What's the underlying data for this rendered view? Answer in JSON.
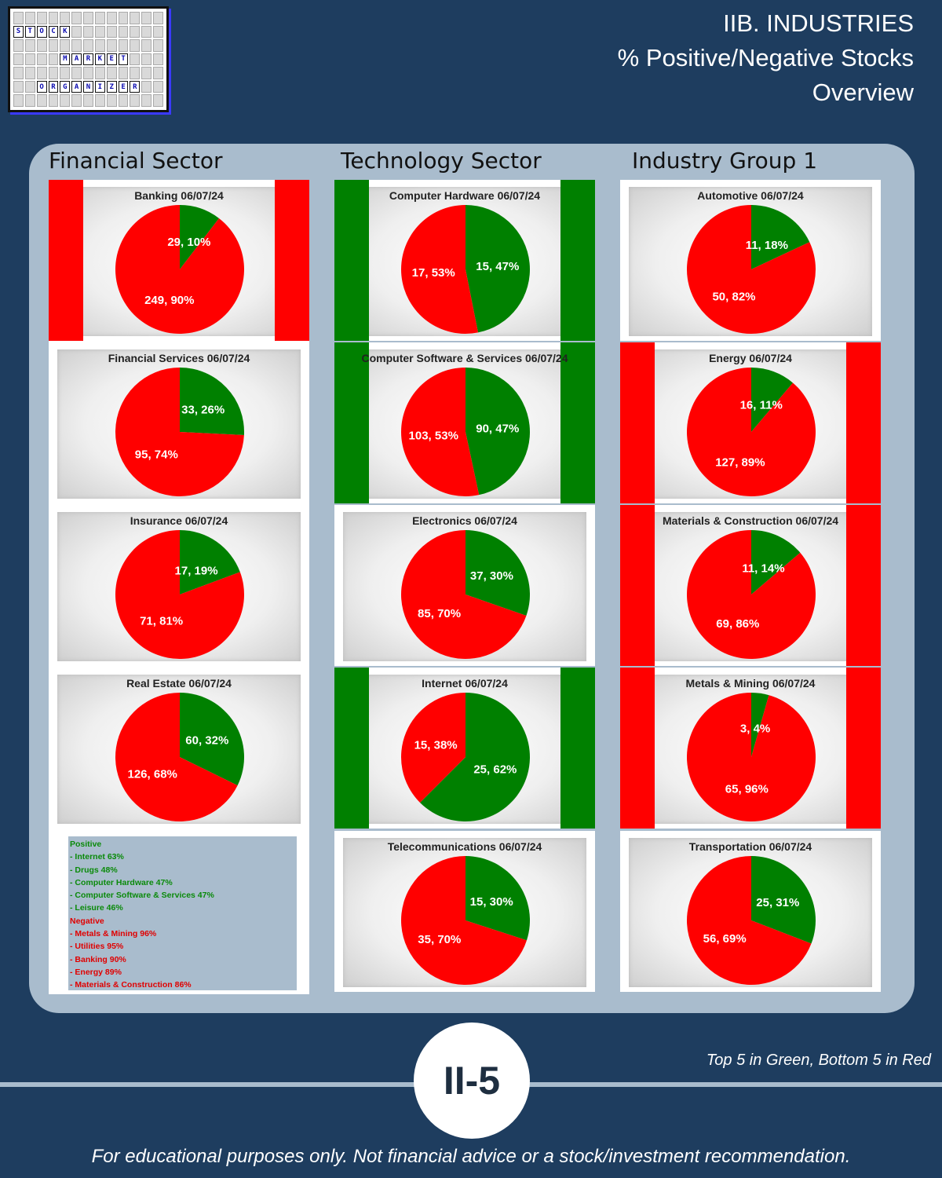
{
  "logo": {
    "rows": [
      [
        "",
        "",
        "",
        "",
        "",
        "",
        "",
        "",
        "",
        "",
        "",
        "",
        ""
      ],
      [
        "S",
        "T",
        "O",
        "C",
        "K",
        "",
        "",
        "",
        "",
        "",
        "",
        "",
        ""
      ],
      [
        "",
        "",
        "",
        "",
        "",
        "",
        "",
        "",
        "",
        "",
        "",
        "",
        ""
      ],
      [
        "",
        "",
        "",
        "",
        "M",
        "A",
        "R",
        "K",
        "E",
        "T",
        "",
        "",
        ""
      ],
      [
        "",
        "",
        "",
        "",
        "",
        "",
        "",
        "",
        "",
        "",
        "",
        "",
        ""
      ],
      [
        "",
        "",
        "O",
        "R",
        "G",
        "A",
        "N",
        "I",
        "Z",
        "E",
        "R",
        "",
        ""
      ],
      [
        "",
        "",
        "",
        "",
        "",
        "",
        "",
        "",
        "",
        "",
        "",
        "",
        ""
      ]
    ]
  },
  "header": {
    "line1": "IIB. INDUSTRIES",
    "line2": "% Positive/Negative Stocks",
    "line3": "Overview"
  },
  "sectors": [
    "Financial Sector",
    "Technology Sector",
    "Industry Group 1"
  ],
  "colors": {
    "positive": "#008000",
    "negative": "#ff0000",
    "background": "#1e3d5f",
    "panel": "#a9bccd"
  },
  "chart_data": [
    {
      "type": "pie",
      "title": "Banking 06/07/24",
      "column": 0,
      "row": 0,
      "highlight": "bottom",
      "labels": [
        "29, 10%",
        "249, 90%"
      ],
      "series": [
        {
          "values": [
            29,
            249
          ],
          "colors": [
            "#008000",
            "#ff0000"
          ]
        }
      ]
    },
    {
      "type": "pie",
      "title": "Financial Services 06/07/24",
      "column": 0,
      "row": 1,
      "highlight": "none",
      "labels": [
        "33, 26%",
        "95, 74%"
      ],
      "series": [
        {
          "values": [
            33,
            95
          ],
          "colors": [
            "#008000",
            "#ff0000"
          ]
        }
      ]
    },
    {
      "type": "pie",
      "title": "Insurance 06/07/24",
      "column": 0,
      "row": 2,
      "highlight": "none",
      "labels": [
        "17, 19%",
        "71, 81%"
      ],
      "series": [
        {
          "values": [
            17,
            71
          ],
          "colors": [
            "#008000",
            "#ff0000"
          ]
        }
      ]
    },
    {
      "type": "pie",
      "title": "Real Estate 06/07/24",
      "column": 0,
      "row": 3,
      "highlight": "none",
      "labels": [
        "60, 32%",
        "126, 68%"
      ],
      "series": [
        {
          "values": [
            60,
            126
          ],
          "colors": [
            "#008000",
            "#ff0000"
          ]
        }
      ]
    },
    {
      "type": "pie",
      "title": "Computer Hardware 06/07/24",
      "column": 1,
      "row": 0,
      "highlight": "top",
      "labels": [
        "15, 47%",
        "17, 53%"
      ],
      "series": [
        {
          "values": [
            15,
            17
          ],
          "colors": [
            "#008000",
            "#ff0000"
          ]
        }
      ]
    },
    {
      "type": "pie",
      "title": "Computer Software & Services 06/07/24",
      "column": 1,
      "row": 1,
      "highlight": "top",
      "labels": [
        "90, 47%",
        "103, 53%"
      ],
      "series": [
        {
          "values": [
            90,
            103
          ],
          "colors": [
            "#008000",
            "#ff0000"
          ]
        }
      ]
    },
    {
      "type": "pie",
      "title": "Electronics 06/07/24",
      "column": 1,
      "row": 2,
      "highlight": "none",
      "labels": [
        "37, 30%",
        "85, 70%"
      ],
      "series": [
        {
          "values": [
            37,
            85
          ],
          "colors": [
            "#008000",
            "#ff0000"
          ]
        }
      ]
    },
    {
      "type": "pie",
      "title": "Internet 06/07/24",
      "column": 1,
      "row": 3,
      "highlight": "top",
      "labels": [
        "25, 62%",
        "15, 38%"
      ],
      "series": [
        {
          "values": [
            25,
            15
          ],
          "colors": [
            "#008000",
            "#ff0000"
          ]
        }
      ]
    },
    {
      "type": "pie",
      "title": "Telecommunications 06/07/24",
      "column": 1,
      "row": 4,
      "highlight": "none",
      "labels": [
        "15, 30%",
        "35, 70%"
      ],
      "series": [
        {
          "values": [
            15,
            35
          ],
          "colors": [
            "#008000",
            "#ff0000"
          ]
        }
      ]
    },
    {
      "type": "pie",
      "title": "Automotive 06/07/24",
      "column": 2,
      "row": 0,
      "highlight": "none",
      "labels": [
        "11, 18%",
        "50, 82%"
      ],
      "series": [
        {
          "values": [
            11,
            50
          ],
          "colors": [
            "#008000",
            "#ff0000"
          ]
        }
      ]
    },
    {
      "type": "pie",
      "title": "Energy 06/07/24",
      "column": 2,
      "row": 1,
      "highlight": "bottom",
      "labels": [
        "16, 11%",
        "127, 89%"
      ],
      "series": [
        {
          "values": [
            16,
            127
          ],
          "colors": [
            "#008000",
            "#ff0000"
          ]
        }
      ]
    },
    {
      "type": "pie",
      "title": "Materials & Construction 06/07/24",
      "column": 2,
      "row": 2,
      "highlight": "bottom",
      "labels": [
        "11, 14%",
        "69, 86%"
      ],
      "series": [
        {
          "values": [
            11,
            69
          ],
          "colors": [
            "#008000",
            "#ff0000"
          ]
        }
      ]
    },
    {
      "type": "pie",
      "title": "Metals & Mining 06/07/24",
      "column": 2,
      "row": 3,
      "highlight": "bottom",
      "labels": [
        "3, 4%",
        "65, 96%"
      ],
      "series": [
        {
          "values": [
            3,
            65
          ],
          "colors": [
            "#008000",
            "#ff0000"
          ]
        }
      ]
    },
    {
      "type": "pie",
      "title": "Transportation 06/07/24",
      "column": 2,
      "row": 4,
      "highlight": "none",
      "labels": [
        "25, 31%",
        "56, 69%"
      ],
      "series": [
        {
          "values": [
            25,
            56
          ],
          "colors": [
            "#008000",
            "#ff0000"
          ]
        }
      ]
    }
  ],
  "legend": {
    "positive_title": "Positive",
    "positive": [
      "- Internet 63%",
      "- Drugs 48%",
      "- Computer Hardware 47%",
      "- Computer Software & Services 47%",
      "- Leisure 46%"
    ],
    "negative_title": "Negative",
    "negative": [
      "- Metals & Mining 96%",
      "- Utilities 95%",
      "- Banking 90%",
      "- Energy 89%",
      "- Materials & Construction 86%"
    ]
  },
  "badge": "II-5",
  "top5_note": "Top 5 in Green, Bottom 5 in Red",
  "footer": "For educational purposes only. Not financial advice or a stock/investment recommendation."
}
